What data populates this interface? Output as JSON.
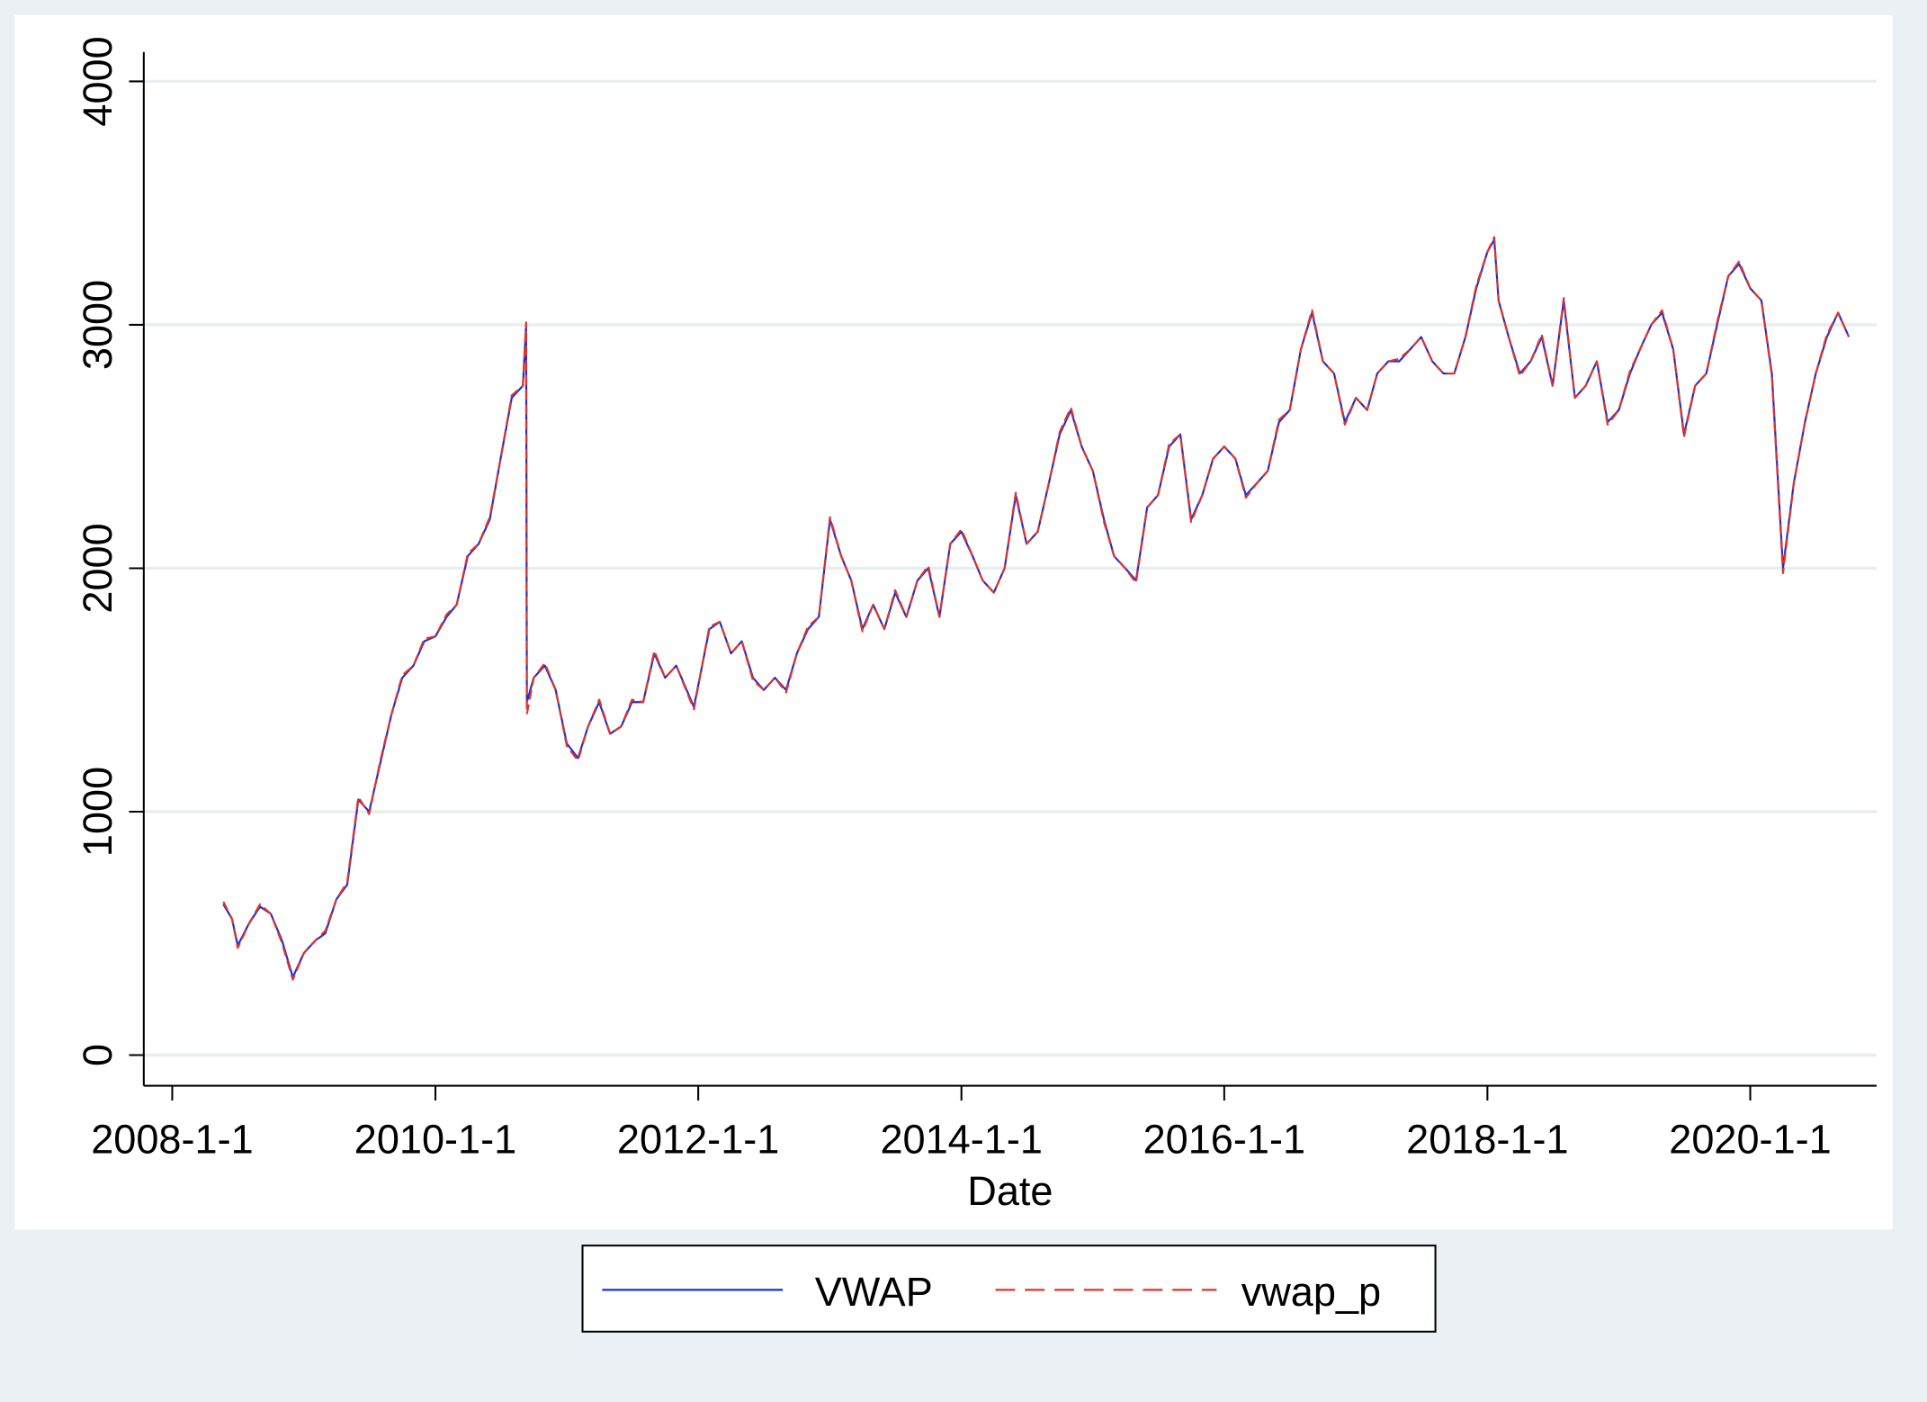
{
  "chart_data": {
    "type": "line",
    "x_label": "Date",
    "x": [
      "2008-5-22",
      "2008-6-15",
      "2008-7-1",
      "2008-8-1",
      "2008-9-1",
      "2008-10-1",
      "2008-11-1",
      "2008-12-1",
      "2009-1-1",
      "2009-2-1",
      "2009-3-1",
      "2009-4-1",
      "2009-5-1",
      "2009-6-1",
      "2009-7-1",
      "2009-8-1",
      "2009-9-1",
      "2009-10-1",
      "2009-11-1",
      "2009-12-1",
      "2010-1-1",
      "2010-2-1",
      "2010-3-1",
      "2010-4-1",
      "2010-5-1",
      "2010-6-1",
      "2010-7-1",
      "2010-8-1",
      "2010-9-1",
      "2010-9-10",
      "2010-9-12",
      "2010-10-1",
      "2010-11-1",
      "2010-12-1",
      "2011-1-1",
      "2011-2-1",
      "2011-3-1",
      "2011-4-1",
      "2011-5-1",
      "2011-6-1",
      "2011-7-1",
      "2011-8-1",
      "2011-9-1",
      "2011-10-1",
      "2011-11-1",
      "2011-12-20",
      "2012-2-1",
      "2012-3-1",
      "2012-4-1",
      "2012-5-1",
      "2012-6-1",
      "2012-7-1",
      "2012-8-1",
      "2012-9-1",
      "2012-10-1",
      "2012-11-1",
      "2012-12-1",
      "2013-1-1",
      "2013-2-1",
      "2013-3-1",
      "2013-4-1",
      "2013-5-1",
      "2013-6-1",
      "2013-7-1",
      "2013-8-1",
      "2013-9-1",
      "2013-10-1",
      "2013-11-1",
      "2013-12-1",
      "2014-1-1",
      "2014-2-1",
      "2014-3-1",
      "2014-4-1",
      "2014-5-1",
      "2014-6-1",
      "2014-7-1",
      "2014-8-1",
      "2014-9-1",
      "2014-10-1",
      "2014-11-1",
      "2014-12-1",
      "2015-1-1",
      "2015-2-1",
      "2015-3-1",
      "2015-4-1",
      "2015-5-1",
      "2015-6-1",
      "2015-7-1",
      "2015-8-1",
      "2015-9-1",
      "2015-10-1",
      "2015-11-1",
      "2015-12-1",
      "2016-1-1",
      "2016-2-1",
      "2016-3-1",
      "2016-4-1",
      "2016-5-1",
      "2016-6-1",
      "2016-7-1",
      "2016-8-1",
      "2016-9-1",
      "2016-10-1",
      "2016-11-1",
      "2016-12-1",
      "2017-1-1",
      "2017-2-1",
      "2017-3-1",
      "2017-4-1",
      "2017-5-1",
      "2017-6-1",
      "2017-7-1",
      "2017-8-1",
      "2017-9-1",
      "2017-10-1",
      "2017-11-1",
      "2017-12-1",
      "2018-1-1",
      "2018-1-20",
      "2018-2-1",
      "2018-3-1",
      "2018-4-1",
      "2018-5-1",
      "2018-6-1",
      "2018-7-1",
      "2018-8-1",
      "2018-9-1",
      "2018-10-1",
      "2018-11-1",
      "2018-12-1",
      "2019-1-1",
      "2019-2-1",
      "2019-3-1",
      "2019-4-1",
      "2019-5-1",
      "2019-6-1",
      "2019-7-1",
      "2019-8-1",
      "2019-9-1",
      "2019-10-1",
      "2019-11-1",
      "2019-12-1",
      "2020-1-1",
      "2020-2-1",
      "2020-3-1",
      "2020-4-1",
      "2020-5-1",
      "2020-6-1",
      "2020-7-1",
      "2020-8-1",
      "2020-9-1",
      "2020-10-1"
    ],
    "series": [
      {
        "name": "VWAP",
        "color": "#1a2fd6",
        "dash": false,
        "values": [
          620,
          560,
          450,
          540,
          610,
          580,
          470,
          320,
          420,
          470,
          500,
          640,
          700,
          1050,
          1000,
          1200,
          1400,
          1550,
          1600,
          1700,
          1720,
          1800,
          1850,
          2050,
          2100,
          2200,
          2450,
          2700,
          2750,
          3000,
          1450,
          1550,
          1600,
          1500,
          1280,
          1220,
          1350,
          1450,
          1320,
          1350,
          1450,
          1450,
          1650,
          1550,
          1600,
          1430,
          1750,
          1780,
          1650,
          1700,
          1550,
          1500,
          1550,
          1500,
          1650,
          1750,
          1800,
          2200,
          2050,
          1950,
          1750,
          1850,
          1750,
          1900,
          1800,
          1950,
          2000,
          1800,
          2100,
          2150,
          2050,
          1950,
          1900,
          2000,
          2300,
          2100,
          2150,
          2350,
          2550,
          2650,
          2500,
          2400,
          2200,
          2050,
          2000,
          1950,
          2250,
          2300,
          2500,
          2550,
          2200,
          2300,
          2450,
          2500,
          2450,
          2300,
          2350,
          2400,
          2600,
          2650,
          2900,
          3050,
          2850,
          2800,
          2600,
          2700,
          2650,
          2800,
          2850,
          2850,
          2900,
          2950,
          2850,
          2800,
          2800,
          2950,
          3150,
          3300,
          3350,
          3100,
          2950,
          2800,
          2850,
          2950,
          2750,
          3100,
          2700,
          2750,
          2850,
          2600,
          2650,
          2800,
          2900,
          3000,
          3050,
          2900,
          2550,
          2750,
          2800,
          3000,
          3200,
          3250,
          3150,
          3100,
          2800,
          2000,
          2350,
          2600,
          2800,
          2950,
          3050,
          2950
        ]
      },
      {
        "name": "vwap_p",
        "color": "#e0332b",
        "dash": true,
        "values": [
          630,
          560,
          440,
          540,
          620,
          580,
          460,
          310,
          420,
          470,
          510,
          640,
          710,
          1060,
          990,
          1210,
          1400,
          1560,
          1600,
          1710,
          1720,
          1810,
          1850,
          2060,
          2100,
          2210,
          2450,
          2710,
          2750,
          3010,
          1400,
          1550,
          1610,
          1500,
          1270,
          1210,
          1350,
          1460,
          1320,
          1350,
          1460,
          1450,
          1660,
          1550,
          1600,
          1420,
          1760,
          1780,
          1650,
          1700,
          1540,
          1500,
          1550,
          1490,
          1650,
          1760,
          1800,
          2210,
          2050,
          1950,
          1740,
          1850,
          1750,
          1910,
          1800,
          1950,
          2010,
          1800,
          2100,
          2160,
          2050,
          1950,
          1900,
          2000,
          2310,
          2100,
          2150,
          2350,
          2560,
          2660,
          2500,
          2400,
          2190,
          2050,
          2000,
          1940,
          2250,
          2300,
          2510,
          2550,
          2190,
          2300,
          2450,
          2500,
          2450,
          2290,
          2350,
          2400,
          2610,
          2650,
          2900,
          3060,
          2850,
          2800,
          2590,
          2700,
          2650,
          2800,
          2850,
          2860,
          2900,
          2950,
          2850,
          2800,
          2800,
          2950,
          3160,
          3300,
          3360,
          3100,
          2950,
          2790,
          2850,
          2960,
          2750,
          3110,
          2700,
          2750,
          2850,
          2590,
          2650,
          2810,
          2900,
          3000,
          3060,
          2900,
          2540,
          2750,
          2800,
          3010,
          3200,
          3260,
          3150,
          3100,
          2790,
          1980,
          2350,
          2600,
          2800,
          2960,
          3050,
          2950
        ]
      }
    ],
    "xlim": [
      "2007-10-14",
      "2020-12-17"
    ],
    "xticks": [
      "2008-1-1",
      "2010-1-1",
      "2012-1-1",
      "2014-1-1",
      "2016-1-1",
      "2018-1-1",
      "2020-1-1"
    ],
    "ylim": [
      -126,
      4121
    ],
    "yticks": [
      0,
      1000,
      2000,
      3000,
      4000
    ],
    "grid": true,
    "legend": "bottom"
  }
}
